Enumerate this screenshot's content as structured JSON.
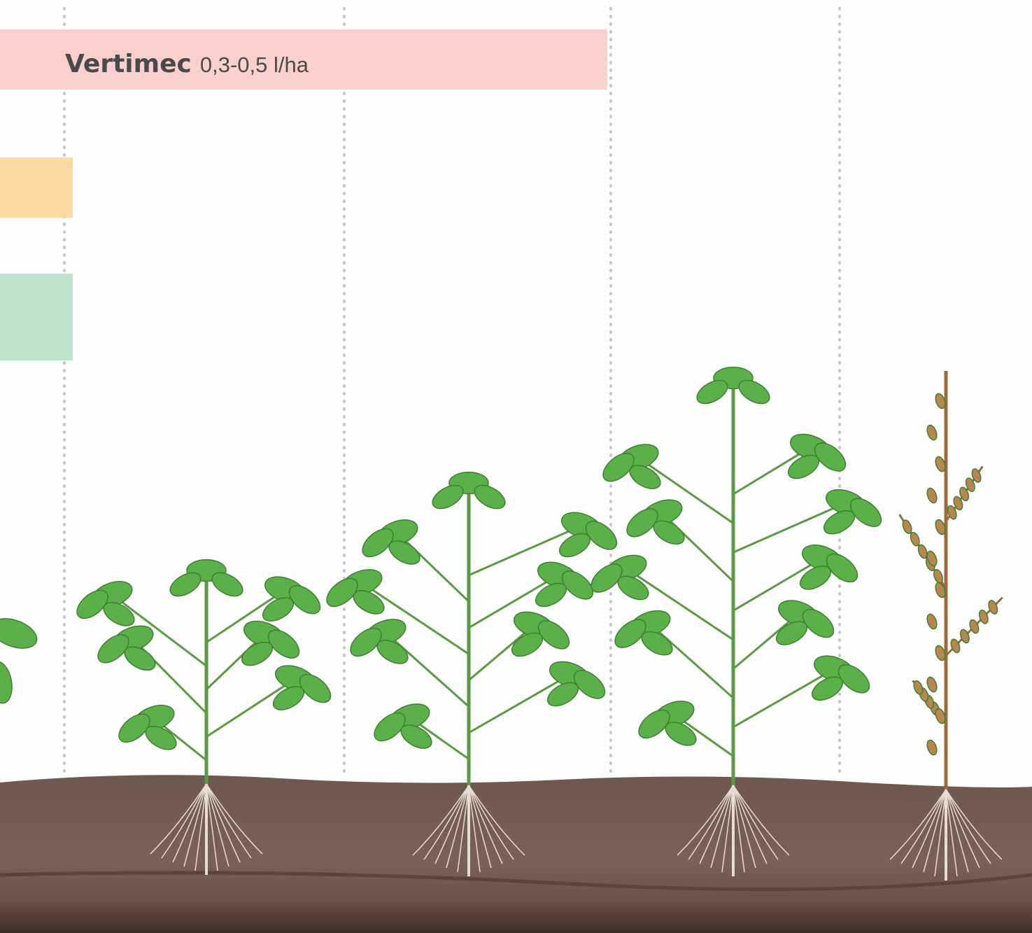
{
  "banner": {
    "product": "Vertimec",
    "dose": "0,3-0,5 l/ha"
  }
}
